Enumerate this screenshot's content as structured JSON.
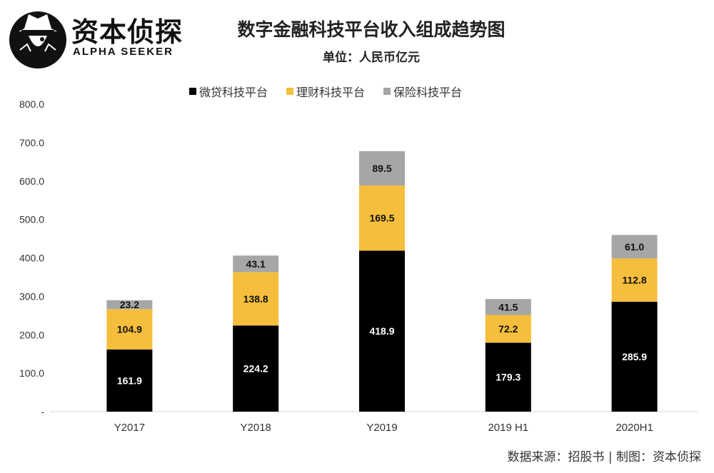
{
  "brand": {
    "name": "资本侦探",
    "name_en": "ALPHA SEEKER"
  },
  "source": "数据来源：招股书 | 制图：资本侦探",
  "chart_data": {
    "type": "bar",
    "stacked": true,
    "title": "数字金融科技平台收入组成趋势图",
    "subtitle": "单位：人民币亿元",
    "categories": [
      "Y2017",
      "Y2018",
      "Y2019",
      "2019 H1",
      "2020H1"
    ],
    "series": [
      {
        "name": "微贷科技平台",
        "color": "#000000",
        "values": [
          161.9,
          224.2,
          418.9,
          179.3,
          285.9
        ],
        "labels": [
          "161.9",
          "224.2",
          "418.9",
          "179.3",
          "285.9"
        ],
        "label_color": "#ffffff"
      },
      {
        "name": "理财科技平台",
        "color": "#F5BE3C",
        "values": [
          104.9,
          138.8,
          169.5,
          72.2,
          112.8
        ],
        "labels": [
          "104.9",
          "138.8",
          "169.5",
          "72.2",
          "112.8"
        ],
        "label_color": "#111111"
      },
      {
        "name": "保险科技平台",
        "color": "#A6A6A6",
        "values": [
          23.2,
          43.1,
          89.5,
          41.5,
          61.0
        ],
        "labels": [
          "23.2",
          "43.1",
          "89.5",
          "41.5",
          "61.0"
        ],
        "label_color": "#111111"
      }
    ],
    "ylim": [
      0,
      800
    ],
    "yticks": [
      0,
      100,
      200,
      300,
      400,
      500,
      600,
      700,
      800
    ],
    "ytick_labels": [
      "-",
      "100.0",
      "200.0",
      "300.0",
      "400.0",
      "500.0",
      "600.0",
      "700.0",
      "800.0"
    ],
    "legend": "top",
    "grid": false,
    "xlabel": "",
    "ylabel": ""
  }
}
